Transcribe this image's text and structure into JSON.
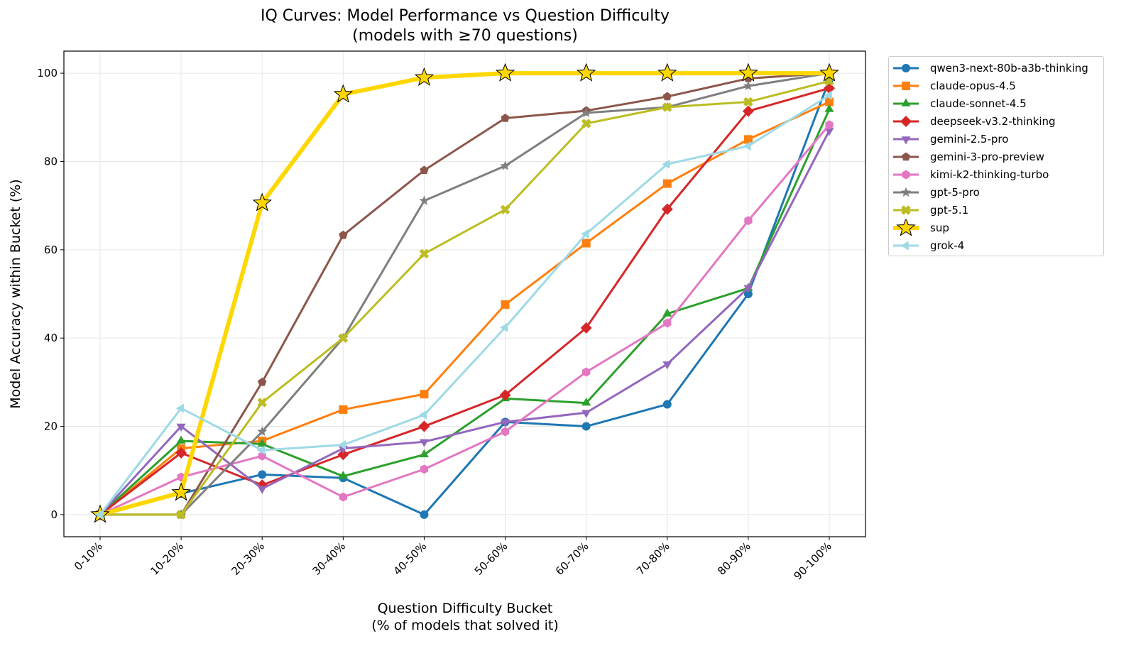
{
  "chart_data": {
    "type": "line",
    "title": "IQ Curves: Model Performance vs Question Difficulty",
    "subtitle": "(models with ≥70 questions)",
    "xlabel": "Question Difficulty Bucket",
    "xlabel_sub": "(% of models that solved it)",
    "ylabel": "Model Accuracy within Bucket (%)",
    "categories": [
      "0-10%",
      "10-20%",
      "20-30%",
      "30-40%",
      "40-50%",
      "50-60%",
      "60-70%",
      "70-80%",
      "80-90%",
      "90-100%"
    ],
    "ylim": [
      -5,
      105
    ],
    "yticks": [
      0,
      20,
      40,
      60,
      80,
      100
    ],
    "grid": true,
    "legend_position": "outside-top-right",
    "series": [
      {
        "name": "qwen3-next-80b-a3b-thinking",
        "color": "#1f77b4",
        "marker": "circle",
        "values": [
          0,
          4.8,
          9.1,
          8.3,
          0,
          21,
          20,
          25,
          50,
          98.5
        ]
      },
      {
        "name": "claude-opus-4.5",
        "color": "#ff7f0e",
        "marker": "square",
        "values": [
          0,
          15,
          16.7,
          23.8,
          27.3,
          47.6,
          61.5,
          75,
          85,
          93.5
        ]
      },
      {
        "name": "claude-sonnet-4.5",
        "color": "#2ca02c",
        "marker": "triangle-up",
        "values": [
          0,
          16.7,
          16,
          8.7,
          13.6,
          26.3,
          25.3,
          45.5,
          51.3,
          91.8
        ]
      },
      {
        "name": "deepseek-v3.2-thinking",
        "color": "#d62728",
        "marker": "diamond",
        "values": [
          0,
          14,
          6.7,
          13.6,
          20,
          27.1,
          42.3,
          69.2,
          91.4,
          96.6
        ]
      },
      {
        "name": "gemini-2.5-pro",
        "color": "#9467bd",
        "marker": "triangle-down",
        "values": [
          0,
          20,
          5.9,
          15,
          16.5,
          21,
          23.1,
          34.1,
          51.4,
          87
        ]
      },
      {
        "name": "gemini-3-pro-preview",
        "color": "#8c564b",
        "marker": "pentagon",
        "values": [
          0,
          0,
          30,
          63.3,
          78,
          89.8,
          91.5,
          94.7,
          98.8,
          100
        ]
      },
      {
        "name": "kimi-k2-thinking-turbo",
        "color": "#e377c2",
        "marker": "hexagon",
        "values": [
          0,
          8.5,
          13.3,
          4,
          10.3,
          18.8,
          32.3,
          43.4,
          66.6,
          88.3
        ]
      },
      {
        "name": "gpt-5-pro",
        "color": "#7f7f7f",
        "marker": "star-small",
        "values": [
          0,
          0,
          18.8,
          40,
          71.1,
          79,
          91,
          92.3,
          97.1,
          100
        ]
      },
      {
        "name": "gpt-5.1",
        "color": "#bcbd22",
        "marker": "x-filled",
        "values": [
          0,
          0,
          25.4,
          40,
          59.1,
          69.1,
          88.6,
          92.3,
          93.5,
          98.2
        ]
      },
      {
        "name": "sup",
        "color": "#ffd700",
        "marker": "star-large",
        "values": [
          0,
          5,
          70.6,
          95.2,
          99,
          100,
          100,
          100,
          100,
          100
        ]
      },
      {
        "name": "grok-4",
        "color": "#9edae5",
        "marker": "triangle-left",
        "values": [
          0,
          24.1,
          14.6,
          15.8,
          22.6,
          42.4,
          63.6,
          79.4,
          83.5,
          95
        ]
      }
    ]
  }
}
